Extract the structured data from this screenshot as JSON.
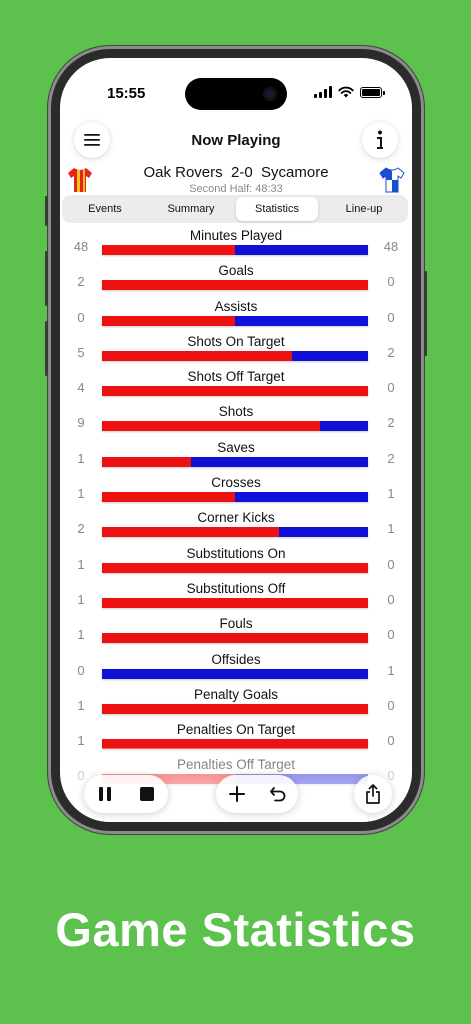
{
  "status_bar": {
    "time": "15:55"
  },
  "navbar": {
    "title": "Now Playing",
    "menu_icon": "hamburger-menu-icon",
    "info_icon": "info-icon"
  },
  "match": {
    "home_team": "Oak Rovers",
    "away_team": "Sycamore",
    "score": "2-0",
    "period": "Second Half: 48:33",
    "home_kit_colors": [
      "#e8231d",
      "#f4c41a"
    ],
    "away_kit_colors": [
      "#1a4fd1",
      "#ffffff"
    ]
  },
  "tabs": [
    {
      "label": "Events",
      "active": false
    },
    {
      "label": "Summary",
      "active": false
    },
    {
      "label": "Statistics",
      "active": true
    },
    {
      "label": "Line-up",
      "active": false
    }
  ],
  "colors": {
    "home": "#ee1111",
    "away": "#1010d8",
    "background": "#5cc24d"
  },
  "stats": [
    {
      "label": "Minutes Played",
      "home": "48",
      "away": "48",
      "home_share": 0.5
    },
    {
      "label": "Goals",
      "home": "2",
      "away": "0",
      "home_share": 1
    },
    {
      "label": "Assists",
      "home": "0",
      "away": "0",
      "home_share": 0.5
    },
    {
      "label": "Shots On Target",
      "home": "5",
      "away": "2",
      "home_share": 0.714
    },
    {
      "label": "Shots Off Target",
      "home": "4",
      "away": "0",
      "home_share": 1
    },
    {
      "label": "Shots",
      "home": "9",
      "away": "2",
      "home_share": 0.818
    },
    {
      "label": "Saves",
      "home": "1",
      "away": "2",
      "home_share": 0.333
    },
    {
      "label": "Crosses",
      "home": "1",
      "away": "1",
      "home_share": 0.5
    },
    {
      "label": "Corner Kicks",
      "home": "2",
      "away": "1",
      "home_share": 0.667
    },
    {
      "label": "Substitutions On",
      "home": "1",
      "away": "0",
      "home_share": 1
    },
    {
      "label": "Substitutions Off",
      "home": "1",
      "away": "0",
      "home_share": 1
    },
    {
      "label": "Fouls",
      "home": "1",
      "away": "0",
      "home_share": 1
    },
    {
      "label": "Offsides",
      "home": "0",
      "away": "1",
      "home_share": 0
    },
    {
      "label": "Penalty Goals",
      "home": "1",
      "away": "0",
      "home_share": 1
    },
    {
      "label": "Penalties On Target",
      "home": "1",
      "away": "0",
      "home_share": 1
    },
    {
      "label": "Penalties Off Target",
      "home": "0",
      "away": "0",
      "home_share": 0.5
    }
  ],
  "toolbar": {
    "pause_icon": "pause-icon",
    "stop_icon": "stop-icon",
    "add_icon": "plus-icon",
    "undo_icon": "undo-icon",
    "share_icon": "share-icon"
  },
  "caption": "Game Statistics"
}
